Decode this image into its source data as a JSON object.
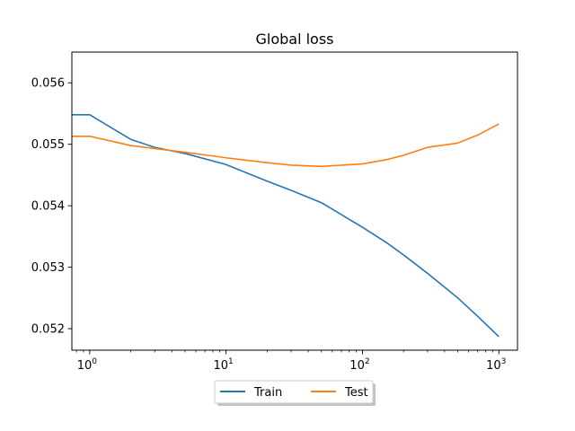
{
  "chart_data": {
    "type": "line",
    "title": "Global loss",
    "xlabel": "",
    "ylabel": "",
    "xscale": "log",
    "xlim": [
      0.74,
      1370
    ],
    "ylim": [
      0.05165,
      0.0565
    ],
    "x_ticks": [
      {
        "value": 1,
        "base": "10",
        "exp": "0"
      },
      {
        "value": 10,
        "base": "10",
        "exp": "1"
      },
      {
        "value": 100,
        "base": "10",
        "exp": "2"
      },
      {
        "value": 1000,
        "base": "10",
        "exp": "3"
      }
    ],
    "y_ticks": [
      "0.052",
      "0.053",
      "0.054",
      "0.055",
      "0.056"
    ],
    "grid": false,
    "legend": {
      "placement": "bottom-center",
      "columns": 2
    },
    "series": [
      {
        "name": "Train",
        "color": "#1f77b4",
        "points": [
          [
            0.74,
            0.05548
          ],
          [
            1,
            0.05548
          ],
          [
            2,
            0.05508
          ],
          [
            3,
            0.05495
          ],
          [
            5,
            0.05485
          ],
          [
            10,
            0.05467
          ],
          [
            20,
            0.0544
          ],
          [
            30,
            0.05425
          ],
          [
            50,
            0.05405
          ],
          [
            100,
            0.05365
          ],
          [
            150,
            0.0534
          ],
          [
            200,
            0.0532
          ],
          [
            300,
            0.0529
          ],
          [
            500,
            0.0525
          ],
          [
            700,
            0.0522
          ],
          [
            1000,
            0.05187
          ]
        ]
      },
      {
        "name": "Test",
        "color": "#ff7f0e",
        "points": [
          [
            0.74,
            0.05513
          ],
          [
            1,
            0.05513
          ],
          [
            2,
            0.05498
          ],
          [
            3,
            0.05493
          ],
          [
            5,
            0.05487
          ],
          [
            10,
            0.05478
          ],
          [
            20,
            0.0547
          ],
          [
            30,
            0.05466
          ],
          [
            50,
            0.05464
          ],
          [
            100,
            0.05468
          ],
          [
            150,
            0.05475
          ],
          [
            200,
            0.05482
          ],
          [
            300,
            0.05495
          ],
          [
            500,
            0.05502
          ],
          [
            700,
            0.05515
          ],
          [
            1000,
            0.05533
          ]
        ]
      }
    ]
  }
}
